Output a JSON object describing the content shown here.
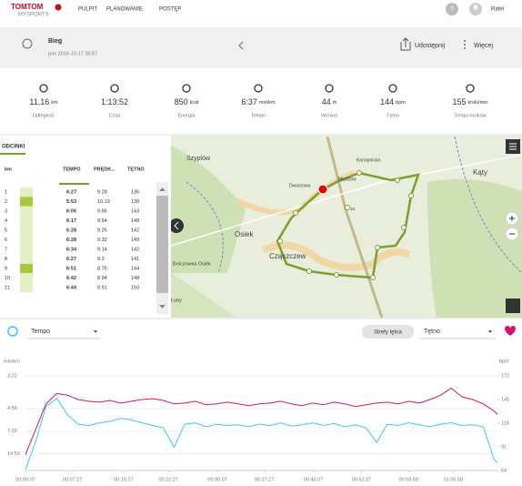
{
  "nav": {
    "logo": "TOMTOM",
    "product": "MYSPORTS",
    "links": [
      "PULPIT",
      "PLANOWANIE",
      "POSTĘP"
    ],
    "help": "?",
    "user": "Rafel"
  },
  "header": {
    "activity": "Bieg",
    "date": "pon 2016-10-17 20:57",
    "share": "Udostępnij",
    "more": "Więcej"
  },
  "stats": [
    {
      "value": "11,16",
      "unit": "km",
      "label": "Odległość"
    },
    {
      "value": "1:13:52",
      "label": "Czas"
    },
    {
      "value": "850",
      "unit": "kcal",
      "label": "Energia"
    },
    {
      "value": "6:37",
      "unit": "min/km",
      "label": "Tempo"
    },
    {
      "value": "44",
      "unit": "m",
      "label": "Wznios"
    },
    {
      "value": "144",
      "unit": "bpm",
      "label": "Tętno"
    },
    {
      "value": "155",
      "unit": "kroki/min",
      "label": "Tempo kroków"
    }
  ],
  "splits": {
    "tab": "ODCINKI",
    "columns": [
      "km",
      "TEMPO",
      "PRĘDK...",
      "TĘTNO"
    ],
    "rows": [
      [
        "1",
        "6:27",
        "9.28",
        "135"
      ],
      [
        "2",
        "5:53",
        "10.19",
        "138"
      ],
      [
        "3",
        "6:05",
        "9.86",
        "143"
      ],
      [
        "4",
        "6:17",
        "9.54",
        "148"
      ],
      [
        "5",
        "6:28",
        "9.26",
        "142"
      ],
      [
        "6",
        "6:28",
        "9.32",
        "149"
      ],
      [
        "7",
        "6:34",
        "9.14",
        "142"
      ],
      [
        "8",
        "6:27",
        "9.3",
        "141"
      ],
      [
        "9",
        "6:51",
        "8.75",
        "144"
      ],
      [
        "10",
        "6:42",
        "8.94",
        "148"
      ],
      [
        "11",
        "6:44",
        "8.91",
        "150"
      ]
    ]
  },
  "map": {
    "labels": [
      "Szyplów",
      "Kąty",
      "Osiek",
      "Cząszczew",
      "Międzów",
      "Bniczówka Osiek",
      "Łuby",
      "Dworcowa",
      "Konopnicka",
      "15"
    ]
  },
  "controls": {
    "left": "Tempo",
    "button": "Strefy tętna",
    "right": "Tętno"
  },
  "chart_data": {
    "type": "line",
    "y_label": "min/km",
    "y2_label": "bpm",
    "yscale": "reciprocal",
    "grid": true,
    "xlim": [
      7,
      4432
    ],
    "xticks": [
      {
        "value": 7,
        "label": "00:00:07"
      },
      {
        "value": 447,
        "label": "00:07:27"
      },
      {
        "value": 927,
        "label": "00:15:27"
      },
      {
        "value": 1347,
        "label": "00:22:27"
      },
      {
        "value": 1807,
        "label": "00:30:07"
      },
      {
        "value": 2247,
        "label": "00:37:27"
      },
      {
        "value": 2707,
        "label": "00:45:07"
      },
      {
        "value": 3157,
        "label": "00:52:37"
      },
      {
        "value": 3598,
        "label": "00:59:58"
      },
      {
        "value": 4018,
        "label": "01:06:58"
      }
    ],
    "ylim": [
      3600,
      202
    ],
    "yticks": [
      {
        "value": 202,
        "label": "3:22"
      },
      {
        "value": 299,
        "label": "4:59"
      },
      {
        "value": 449,
        "label": "7:29"
      },
      {
        "value": 899,
        "label": "14:59"
      }
    ],
    "y2lim": [
      64,
      172
    ],
    "y2ticks": [
      172,
      145,
      118,
      91,
      64
    ],
    "x": [
      7,
      100,
      200,
      300,
      400,
      500,
      600,
      700,
      800,
      900,
      1000,
      1100,
      1200,
      1300,
      1400,
      1500,
      1600,
      1700,
      1800,
      1900,
      2000,
      2100,
      2200,
      2300,
      2400,
      2500,
      2600,
      2700,
      2800,
      2900,
      3000,
      3100,
      3200,
      3300,
      3400,
      3500,
      3600,
      3700,
      3800,
      3900,
      4000,
      4100,
      4200,
      4300,
      4400,
      4432
    ],
    "series": [
      {
        "name": "Tempo",
        "color": "#3ec8e8",
        "values": [
          3000,
          600,
          290,
          260,
          330,
          390,
          400,
          380,
          370,
          350,
          360,
          380,
          400,
          420,
          700,
          390,
          380,
          410,
          390,
          400,
          395,
          410,
          390,
          400,
          380,
          405,
          395,
          380,
          400,
          385,
          410,
          395,
          420,
          600,
          390,
          400,
          380,
          395,
          410,
          390,
          380,
          400,
          395,
          410,
          1200,
          1500
        ]
      },
      {
        "name": "Tętno",
        "color": "#d4136f",
        "axis": "y2",
        "values": [
          82,
          110,
          140,
          152,
          150,
          145,
          143,
          142,
          144,
          141,
          143,
          145,
          146,
          144,
          140,
          141,
          143,
          139,
          140,
          142,
          140,
          138,
          140,
          141,
          143,
          140,
          138,
          141,
          139,
          142,
          140,
          137,
          139,
          141,
          142,
          140,
          143,
          141,
          145,
          150,
          158,
          148,
          145,
          140,
          132,
          128
        ]
      }
    ]
  }
}
